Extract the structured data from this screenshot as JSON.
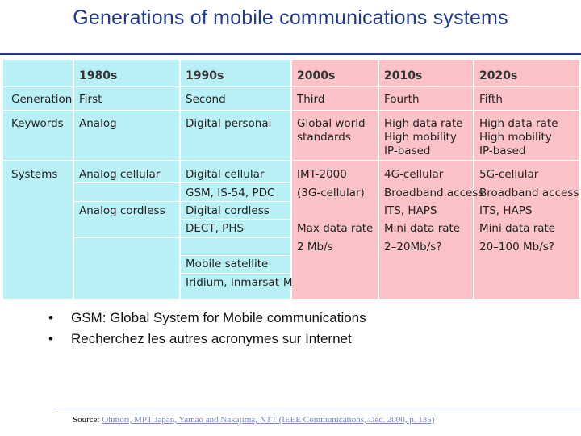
{
  "title": "Generations of mobile communications systems",
  "table": {
    "headers": [
      "1980s",
      "1990s",
      "2000s",
      "2010s",
      "2020s"
    ],
    "row_labels": {
      "generation": "Generation",
      "keywords": "Keywords",
      "systems": "Systems"
    },
    "generation": [
      "First",
      "Second",
      "Third",
      "Fourth",
      "Fifth"
    ],
    "keywords": {
      "c1980": [
        "Analog"
      ],
      "c1990": [
        "Digital personal"
      ],
      "c2000": [
        "Global world",
        "standards"
      ],
      "c2010": [
        "High data rate",
        "High mobility",
        "IP-based"
      ],
      "c2020": [
        "High data rate",
        "High mobility",
        "IP-based"
      ]
    },
    "systems": {
      "c1980": [
        "Analog cellular",
        "Analog cordless"
      ],
      "c1990": [
        "Digital cellular",
        "GSM, IS-54, PDC",
        "Digital cordless",
        "DECT, PHS",
        "Mobile satellite",
        "Iridium, Inmarsat-M"
      ],
      "c2000": [
        "IMT-2000",
        "(3G-cellular)",
        "Max data rate",
        "2 Mb/s"
      ],
      "c2010": [
        "4G-cellular",
        "Broadband access",
        "ITS, HAPS",
        "Mini data rate",
        "2–20Mb/s?"
      ],
      "c2020": [
        "5G-cellular",
        "Broadband access",
        "ITS, HAPS",
        "Mini data rate",
        "20–100 Mb/s?"
      ]
    }
  },
  "bullets": [
    "GSM: Global System for Mobile communications",
    "Recherchez les autres acronymes sur Internet"
  ],
  "bullet_glyph": "•",
  "source": {
    "label": "Source:",
    "text": "Ohmori, MPT Japan, Yamao and Nakajima, NTT (IEEE Communications, Dec. 2000, p. 135)"
  },
  "colors": {
    "title": "#1f3a8a",
    "cyan_columns": "#b9f0f5",
    "pink_columns": "#fbc3c7"
  }
}
